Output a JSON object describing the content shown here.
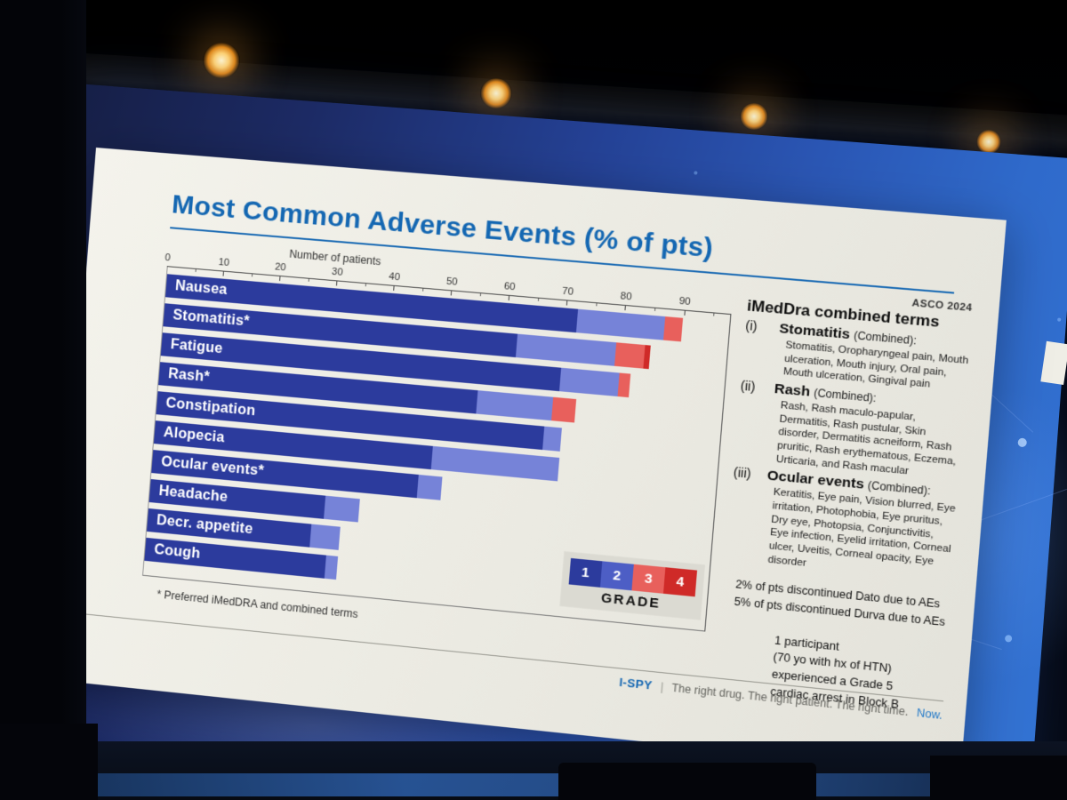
{
  "slide": {
    "title": "Most Common Adverse Events (% of pts)",
    "conference_tag": "ASCO 2024",
    "footnote": "* Preferred iMedDRA and combined terms",
    "footer": {
      "brand": "I-SPY",
      "separator": "|",
      "tagline": "The right drug. The right patient. The right time.",
      "tagline_highlight": "Now."
    }
  },
  "chart_data": {
    "type": "bar",
    "orientation": "horizontal",
    "axis_label": "Number of patients",
    "axis_ticks": [
      0,
      10,
      20,
      30,
      40,
      50,
      60,
      70,
      80,
      90
    ],
    "xlim": [
      0,
      98
    ],
    "grid": false,
    "categories": [
      "Nausea",
      "Stomatitis*",
      "Fatigue",
      "Rash*",
      "Constipation",
      "Alopecia",
      "Ocular events*",
      "Headache",
      "Decr. appetite",
      "Cough"
    ],
    "series": [
      {
        "name": "Grade 1",
        "color": "#2c3b9d",
        "legend_color": "#2c3b9d",
        "values": [
          72,
          62,
          70,
          56,
          68,
          49,
          47,
          31,
          29,
          32
        ]
      },
      {
        "name": "Grade 2",
        "color": "#7683d8",
        "legend_color": "#4d5ec5",
        "values": [
          15,
          17,
          10,
          13,
          3,
          22,
          4,
          6,
          5,
          2
        ]
      },
      {
        "name": "Grade 3",
        "color": "#e8605c",
        "legend_color": "#e8605c",
        "values": [
          3,
          5,
          2,
          4,
          0,
          0,
          0,
          0,
          0,
          0
        ]
      },
      {
        "name": "Grade 4",
        "color": "#cf2a28",
        "legend_color": "#cf2a28",
        "values": [
          0,
          1,
          0,
          0,
          0,
          0,
          0,
          0,
          0,
          0
        ]
      }
    ],
    "legend": {
      "labels": [
        "1",
        "2",
        "3",
        "4"
      ],
      "title": "GRADE",
      "position": "bottom-right"
    }
  },
  "side_panel": {
    "heading": "iMedDra combined terms",
    "items": [
      {
        "index": "(i)",
        "term": "Stomatitis",
        "qualifier": "(Combined):",
        "details": "Stomatitis, Oropharyngeal pain, Mouth ulceration, Mouth injury, Oral pain, Mouth ulceration, Gingival pain"
      },
      {
        "index": "(ii)",
        "term": "Rash",
        "qualifier": "(Combined):",
        "details": "Rash, Rash maculo-papular, Dermatitis, Rash pustular, Skin disorder, Dermatitis acneiform, Rash pruritic, Rash erythematous, Eczema, Urticaria, and Rash macular"
      },
      {
        "index": "(iii)",
        "term": "Ocular events",
        "qualifier": "(Combined):",
        "details": "Keratitis, Eye pain, Vision blurred, Eye irritation, Photophobia, Eye pruritus, Dry eye, Photopsia, Conjunctivitis, Eye infection, Eyelid irritation, Corneal ulcer, Uveitis, Corneal opacity, Eye disorder"
      }
    ],
    "discontinuation_notes": [
      "2% of pts discontinued Dato due to AEs",
      "5% of pts discontinued Durva due to AEs"
    ],
    "participant_note": [
      "1 participant",
      "(70 yo with hx of HTN)",
      "experienced a Grade 5",
      "cardiac arrest in Block B"
    ]
  }
}
